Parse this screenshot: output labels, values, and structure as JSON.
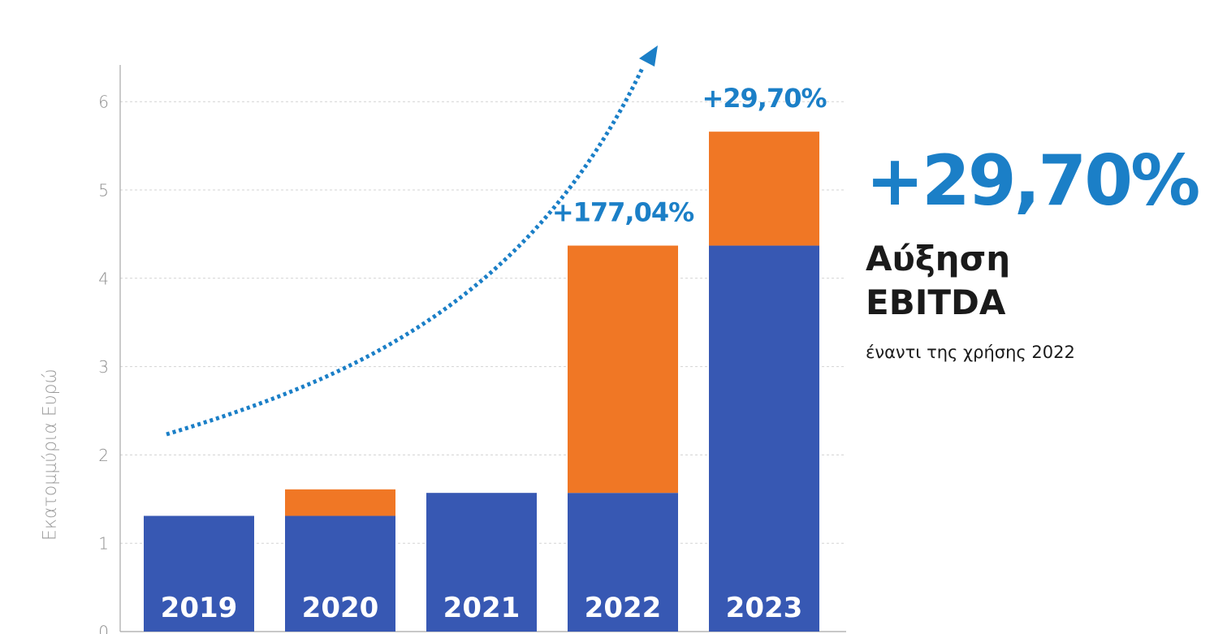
{
  "chart_data": {
    "type": "bar",
    "stacked": true,
    "categories": [
      "2019",
      "2020",
      "2021",
      "2022",
      "2023"
    ],
    "series": [
      {
        "values": [
          1.31,
          1.31,
          1.57,
          1.57,
          4.37
        ],
        "color": "#3758b3"
      },
      {
        "values": [
          0,
          0.3,
          0,
          2.8,
          1.29
        ],
        "color": "#f07725"
      }
    ],
    "ylabel": "Εκατομμύρια Ευρώ",
    "yticks": [
      0,
      1,
      2,
      3,
      4,
      5,
      6
    ],
    "ylim": [
      0,
      6.35
    ],
    "grid": true,
    "annotations": [
      {
        "text": "+177,04%",
        "category": "2022"
      },
      {
        "text": "+29,70%",
        "category": "2023"
      }
    ],
    "trend_arrow": {
      "style": "dotted",
      "color": "#1b7fc7"
    },
    "label_color": "#1b7fc7"
  },
  "side": {
    "headline": "+29,70%",
    "subtitle_line1": "Αύξηση",
    "subtitle_line2": "EBITDA",
    "note": "έναντι της χρήσης 2022"
  }
}
